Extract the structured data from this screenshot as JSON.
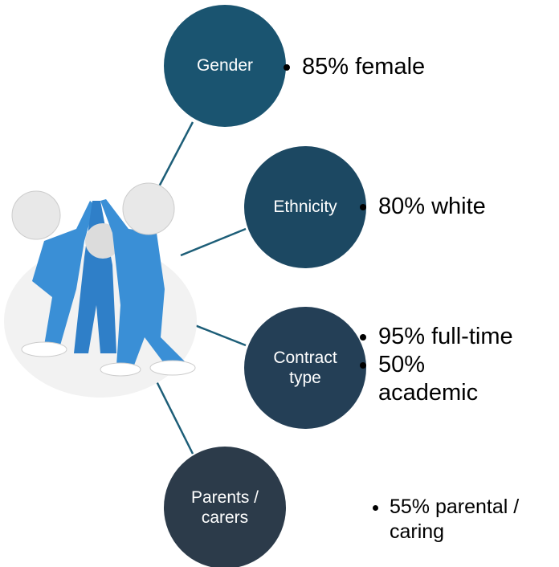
{
  "nodes": [
    {
      "label": "Gender",
      "bullets": [
        "85% female"
      ]
    },
    {
      "label": "Ethnicity",
      "bullets": [
        "80% white"
      ]
    },
    {
      "label": "Contract type",
      "bullets": [
        "95% full-time",
        "50% academic"
      ]
    },
    {
      "label": "Parents / carers",
      "bullets": [
        "55% parental / caring"
      ]
    }
  ]
}
